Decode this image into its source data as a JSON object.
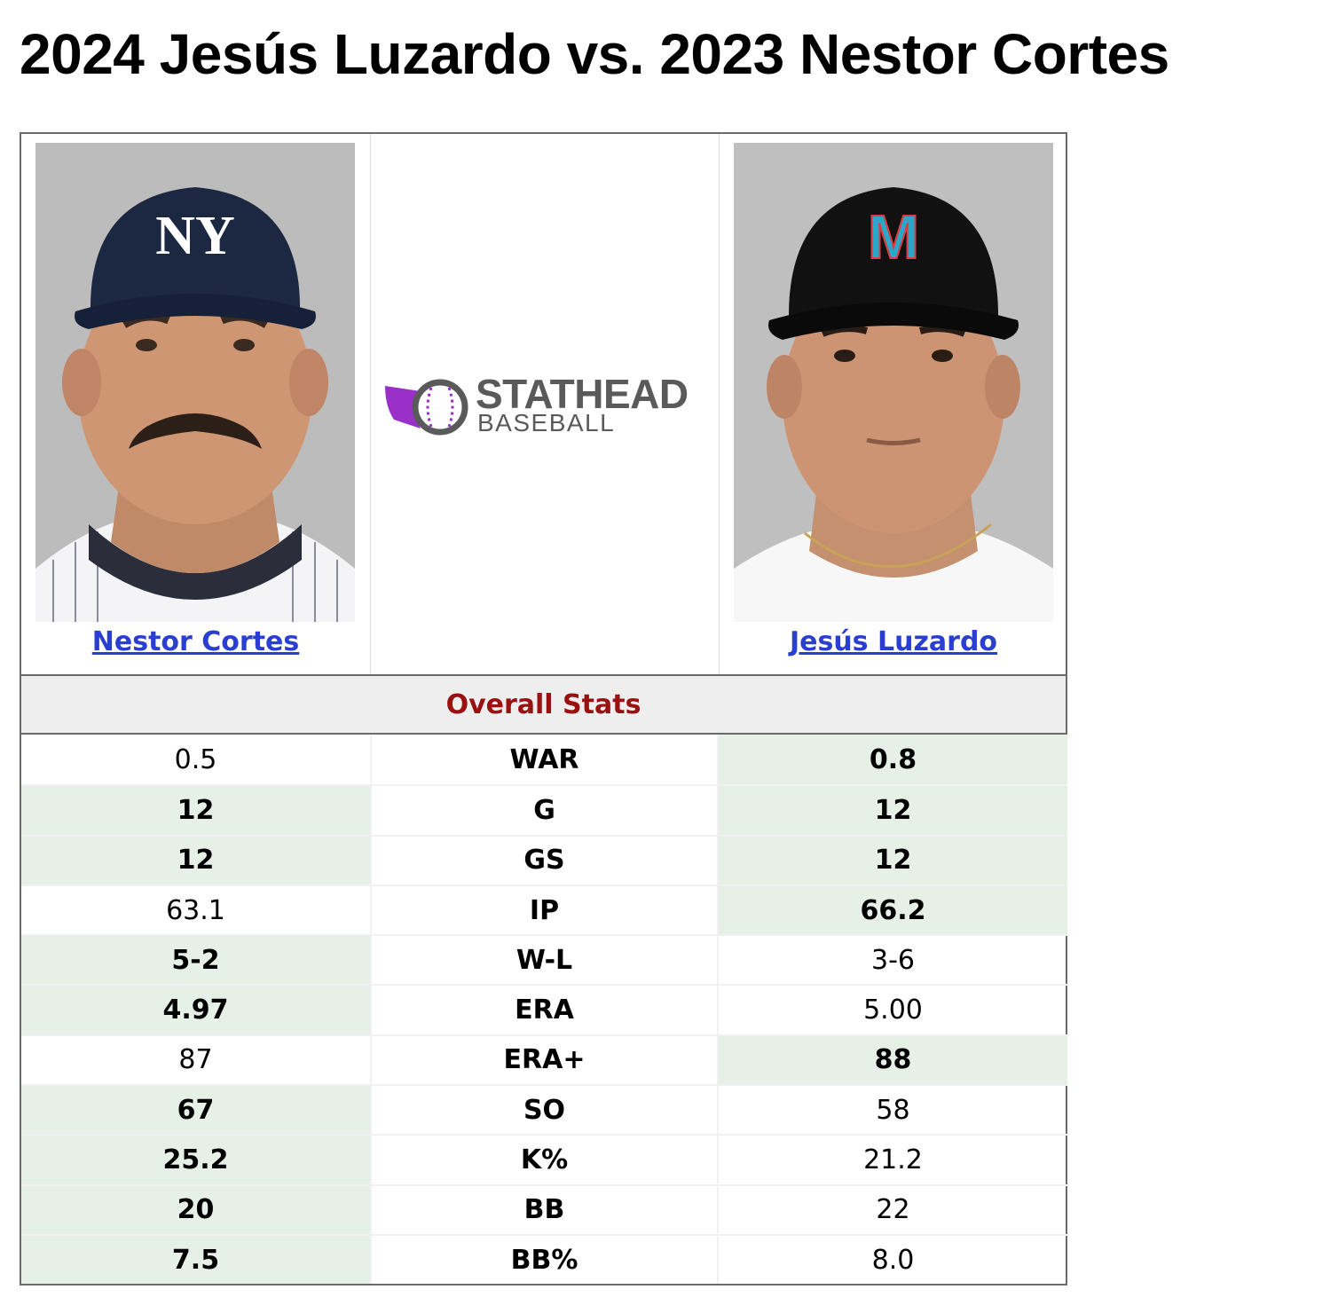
{
  "title": "2024 Jesús Luzardo vs. 2023 Nestor Cortes",
  "logo": {
    "line1": "STATHEAD",
    "line2": "BASEBALL",
    "accent": "#9b30c8"
  },
  "players": {
    "left": {
      "name": "Nestor Cortes",
      "cap_logo": "NY",
      "cap_color": "#1c2841"
    },
    "right": {
      "name": "Jesús Luzardo",
      "cap_logo": "M",
      "cap_color": "#111111"
    }
  },
  "section_title": "Overall Stats",
  "colors": {
    "winner_bg": "#e6f0e6",
    "section_title": "#991111",
    "link": "#2a3fd2"
  },
  "rows": [
    {
      "label": "WAR",
      "left": "0.5",
      "right": "0.8",
      "left_win": false,
      "right_win": true
    },
    {
      "label": "G",
      "left": "12",
      "right": "12",
      "left_win": true,
      "right_win": true
    },
    {
      "label": "GS",
      "left": "12",
      "right": "12",
      "left_win": true,
      "right_win": true
    },
    {
      "label": "IP",
      "left": "63.1",
      "right": "66.2",
      "left_win": false,
      "right_win": true
    },
    {
      "label": "W-L",
      "left": "5-2",
      "right": "3-6",
      "left_win": true,
      "right_win": false
    },
    {
      "label": "ERA",
      "left": "4.97",
      "right": "5.00",
      "left_win": true,
      "right_win": false
    },
    {
      "label": "ERA+",
      "left": "87",
      "right": "88",
      "left_win": false,
      "right_win": true
    },
    {
      "label": "SO",
      "left": "67",
      "right": "58",
      "left_win": true,
      "right_win": false
    },
    {
      "label": "K%",
      "left": "25.2",
      "right": "21.2",
      "left_win": true,
      "right_win": false
    },
    {
      "label": "BB",
      "left": "20",
      "right": "22",
      "left_win": true,
      "right_win": false
    },
    {
      "label": "BB%",
      "left": "7.5",
      "right": "8.0",
      "left_win": true,
      "right_win": false
    }
  ]
}
